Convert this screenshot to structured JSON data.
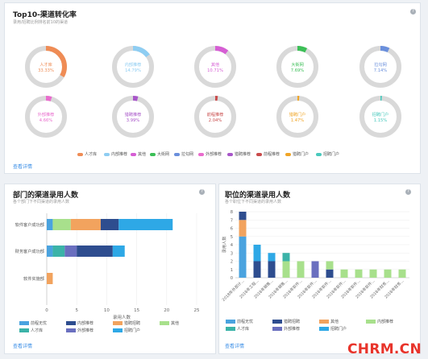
{
  "top_card": {
    "title": "Top10-渠道转化率",
    "subtitle": "录用/招聘比例排名前10的渠道",
    "link": "查看详情",
    "help": "?",
    "donuts": [
      {
        "name": "人才库",
        "pct": "33.33%",
        "value": 0.3333,
        "color": "#ef8c55"
      },
      {
        "name": "内部推荐",
        "pct": "14.79%",
        "value": 0.1479,
        "color": "#8ecdf2"
      },
      {
        "name": "其他",
        "pct": "10.71%",
        "value": 0.1071,
        "color": "#d65ed4"
      },
      {
        "name": "大街网",
        "pct": "7.69%",
        "value": 0.0769,
        "color": "#3cbf57"
      },
      {
        "name": "拉勾网",
        "pct": "7.14%",
        "value": 0.0714,
        "color": "#6a8fdc"
      },
      {
        "name": "外部推荐",
        "pct": "4.66%",
        "value": 0.0466,
        "color": "#e96ccd"
      },
      {
        "name": "猎聘推荐",
        "pct": "3.99%",
        "value": 0.0399,
        "color": "#a856c9"
      },
      {
        "name": "前程推荐",
        "pct": "2.04%",
        "value": 0.0204,
        "color": "#c94b4b"
      },
      {
        "name": "猎聘门户",
        "pct": "1.47%",
        "value": 0.0147,
        "color": "#f0a526"
      },
      {
        "name": "招聘门户",
        "pct": "1.15%",
        "value": 0.0115,
        "color": "#49c9bd"
      }
    ],
    "legend": [
      {
        "label": "人才库",
        "color": "#ef8c55"
      },
      {
        "label": "内部推荐",
        "color": "#8ecdf2"
      },
      {
        "label": "其他",
        "color": "#d65ed4"
      },
      {
        "label": "大街网",
        "color": "#3cbf57"
      },
      {
        "label": "拉勾网",
        "color": "#6a8fdc"
      },
      {
        "label": "外部推荐",
        "color": "#e96ccd"
      },
      {
        "label": "猎聘推荐",
        "color": "#a856c9"
      },
      {
        "label": "前程推荐",
        "color": "#c94b4b"
      },
      {
        "label": "猎聘门户",
        "color": "#f0a526"
      },
      {
        "label": "招聘门户",
        "color": "#49c9bd"
      }
    ]
  },
  "dept_card": {
    "title": "部门的渠道录用人数",
    "subtitle": "各个部门下不同渠道的录用人数",
    "link": "查看详情",
    "help": "?",
    "xlabel": "录用人数",
    "legend": [
      {
        "label": "前程无忧",
        "color": "#4aa3df"
      },
      {
        "label": "内部推荐",
        "color": "#2e4d8f"
      },
      {
        "label": "猎聘招聘",
        "color": "#f2a35e"
      },
      {
        "label": "其他",
        "color": "#a8e08c"
      },
      {
        "label": "人才库",
        "color": "#3bb3a8"
      },
      {
        "label": "外部推荐",
        "color": "#6a6fbf"
      },
      {
        "label": "招聘门户",
        "color": "#2ea8e6"
      }
    ]
  },
  "pos_card": {
    "title": "职位的渠道录用人数",
    "subtitle": "各个职位下不同渠道的录用人数",
    "link": "查看详情",
    "help": "?",
    "ylabel": "录用人数",
    "legend": [
      {
        "label": "前程无忧",
        "color": "#4aa3df"
      },
      {
        "label": "猎聘招聘",
        "color": "#2e4d8f"
      },
      {
        "label": "其他",
        "color": "#f2a35e"
      },
      {
        "label": "内部推荐",
        "color": "#a8e08c"
      },
      {
        "label": "人才库",
        "color": "#3bb3a8"
      },
      {
        "label": "外部推荐",
        "color": "#6a6fbf"
      },
      {
        "label": "招聘门户",
        "color": "#2ea8e6"
      }
    ]
  },
  "chart_data": [
    {
      "type": "bar",
      "orientation": "horizontal",
      "stacked": true,
      "categories": [
        "软件客户成功部",
        "财务客户成功部",
        "软件实施部"
      ],
      "xlabel": "录用人数",
      "xlim": [
        0,
        25
      ],
      "xticks": [
        0,
        5,
        10,
        15,
        20,
        25
      ],
      "series": [
        {
          "name": "前程无忧",
          "color": "#4aa3df",
          "values": [
            1,
            1,
            0
          ]
        },
        {
          "name": "其他",
          "color": "#a8e08c",
          "values": [
            3,
            0,
            0
          ]
        },
        {
          "name": "猎聘招聘",
          "color": "#f2a35e",
          "values": [
            5,
            0,
            1
          ]
        },
        {
          "name": "人才库",
          "color": "#3bb3a8",
          "values": [
            0,
            2,
            0
          ]
        },
        {
          "name": "外部推荐",
          "color": "#6a6fbf",
          "values": [
            0,
            2,
            0
          ]
        },
        {
          "name": "内部推荐",
          "color": "#2e4d8f",
          "values": [
            3,
            6,
            0
          ]
        },
        {
          "name": "招聘门户",
          "color": "#2ea8e6",
          "values": [
            9,
            2,
            0
          ]
        }
      ]
    },
    {
      "type": "bar",
      "orientation": "vertical",
      "stacked": true,
      "categories": [
        "2018年外部计...",
        "2018年工程...",
        "2018年销售...",
        "2018年销售...",
        "2018年软件...",
        "2018年软件...",
        "2018年软件...",
        "2018年软件...",
        "2018年软件...",
        "2018年软件...",
        "2018年财务...",
        "2018年财务..."
      ],
      "ylabel": "录用人数",
      "ylim": [
        0,
        8
      ],
      "yticks": [
        0,
        1,
        2,
        3,
        4,
        5,
        6,
        7,
        8
      ],
      "series": [
        {
          "name": "前程无忧",
          "color": "#4aa3df",
          "values": [
            5,
            0,
            0,
            0,
            0,
            0,
            0,
            0,
            0,
            0,
            0,
            0
          ]
        },
        {
          "name": "其他",
          "color": "#f2a35e",
          "values": [
            2,
            0,
            0,
            0,
            0,
            0,
            0,
            0,
            0,
            0,
            0,
            0
          ]
        },
        {
          "name": "猎聘招聘",
          "color": "#2e4d8f",
          "values": [
            1,
            2,
            2,
            0,
            0,
            0,
            1,
            0,
            0,
            0,
            0,
            0
          ]
        },
        {
          "name": "外部推荐",
          "color": "#6a6fbf",
          "values": [
            0,
            0,
            0,
            0,
            0,
            2,
            0,
            0,
            0,
            0,
            0,
            0
          ]
        },
        {
          "name": "内部推荐",
          "color": "#a8e08c",
          "values": [
            0,
            0,
            0,
            2,
            2,
            0,
            1,
            1,
            1,
            1,
            1,
            1
          ]
        },
        {
          "name": "人才库",
          "color": "#3bb3a8",
          "values": [
            0,
            0,
            0,
            1,
            0,
            0,
            0,
            0,
            0,
            0,
            0,
            0
          ]
        },
        {
          "name": "招聘门户",
          "color": "#2ea8e6",
          "values": [
            0,
            2,
            1,
            0,
            0,
            0,
            0,
            0,
            0,
            0,
            0,
            0
          ]
        }
      ]
    }
  ],
  "watermark": "CHRM.CN"
}
